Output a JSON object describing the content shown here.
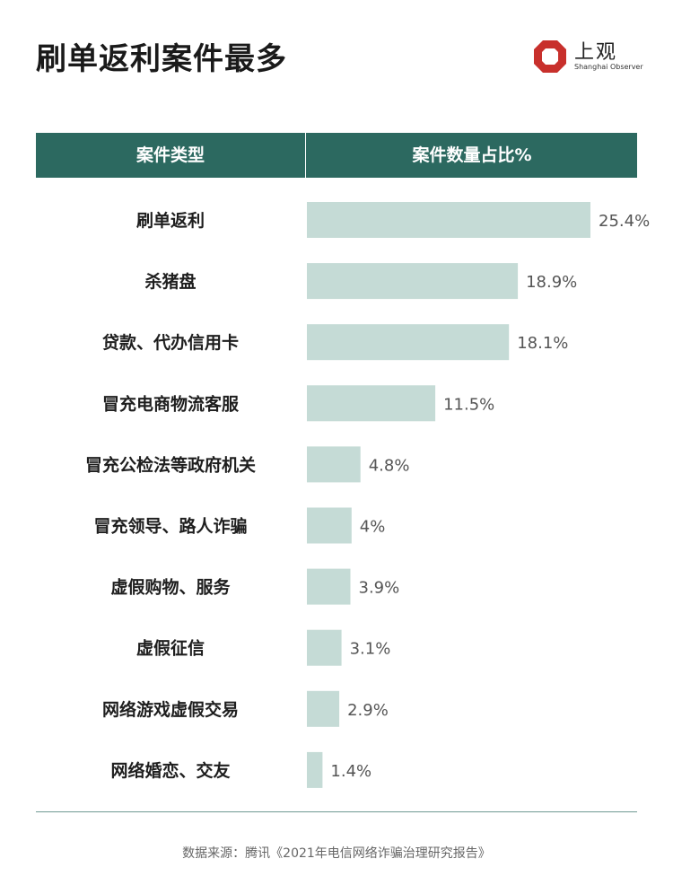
{
  "header": {
    "title": "刷单返利案件最多",
    "logo_cn": "上观",
    "logo_en": "Shanghai Observer",
    "logo_color": "#c8302c"
  },
  "table": {
    "col_category": "案件类型",
    "col_share": "案件数量占比%",
    "header_color": "#2c6960",
    "bar_color": "#c5dbd6"
  },
  "chart_data": {
    "type": "bar",
    "orientation": "horizontal",
    "categories": [
      "刷单返利",
      "杀猪盘",
      "贷款、代办信用卡",
      "冒充电商物流客服",
      "冒充公检法等政府机关",
      "冒充领导、路人诈骗",
      "虚假购物、服务",
      "虚假征信",
      "网络游戏虚假交易",
      "网络婚恋、交友"
    ],
    "values": [
      25.4,
      18.9,
      18.1,
      11.5,
      4.8,
      4,
      3.9,
      3.1,
      2.9,
      1.4
    ],
    "value_labels": [
      "25.4%",
      "18.9%",
      "18.1%",
      "11.5%",
      "4.8%",
      "4%",
      "3.9%",
      "3.1%",
      "2.9%",
      "1.4%"
    ],
    "xlim": [
      0,
      25.4
    ],
    "grid": false
  },
  "footer": {
    "source": "数据来源：腾讯《2021年电信网络诈骗治理研究报告》"
  }
}
